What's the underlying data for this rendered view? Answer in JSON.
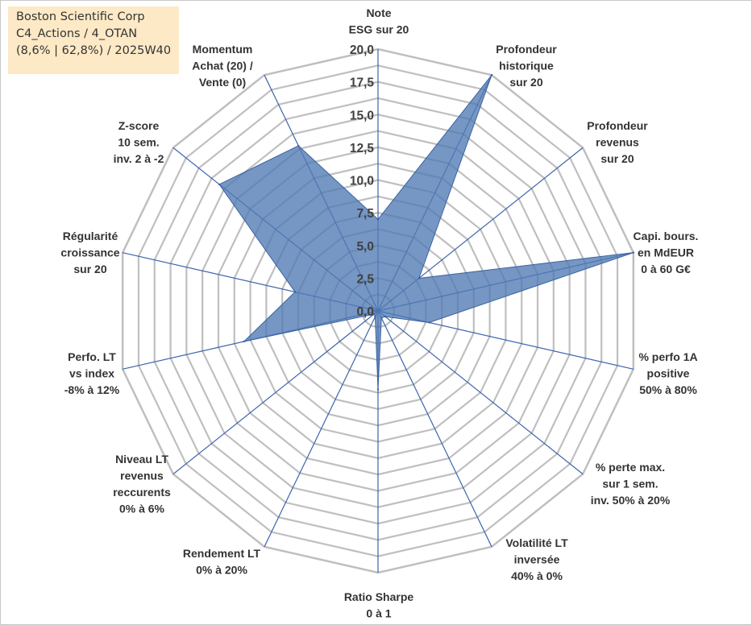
{
  "title_box": {
    "line1": "Boston Scientific Corp",
    "line2": "C4_Actions / 4_OTAN",
    "line3": "(8,6% | 62,8%) / 2025W40"
  },
  "chart_data": {
    "type": "radar",
    "title": "Boston Scientific Corp",
    "rmin": 0,
    "rmax": 20,
    "grid_step": 1.25,
    "tick_values": [
      0,
      2.5,
      5,
      7.5,
      10,
      12.5,
      15,
      17.5,
      20
    ],
    "tick_labels": [
      "0,0",
      "2,5",
      "5,0",
      "7,5",
      "10,0",
      "12,5",
      "15,0",
      "17,5",
      "20,0"
    ],
    "axes": [
      "Note\nESG sur 20",
      "Profondeur\nhistorique\nsur 20",
      "Profondeur\nrevenus\nsur 20",
      "Capi. bours.\nen MdEUR\n0 à 60 G€",
      "% perfo 1A\npositive\n50% à 80%",
      "% perte max.\nsur 1 sem.\ninv. 50% à 20%",
      "Volatilité LT\ninversée\n40% à 0%",
      "Ratio Sharpe\n0 à 1",
      "Rendement LT\n0% à 20%",
      "Niveau LT\nrevenus\nreccurents\n0% à 6%",
      "Perfo. LT\nvs index\n-8% à 12%",
      "Régularité\ncroissance\nsur 20",
      "Z-score\n10 sem.\ninv. 2 à -2",
      "Momentum\nAchat (20) /\nVente (0)"
    ],
    "series": [
      {
        "name": "Boston Scientific Corp",
        "values": [
          7,
          20,
          4,
          20,
          4,
          0.7,
          0.6,
          6,
          0.5,
          0.4,
          10.5,
          6.5,
          15.5,
          14
        ],
        "color": "#4f7ab3",
        "fill_opacity": 0.78
      }
    ],
    "grid_color": "#bfbfbf",
    "spoke_color": "#3e64ad"
  }
}
